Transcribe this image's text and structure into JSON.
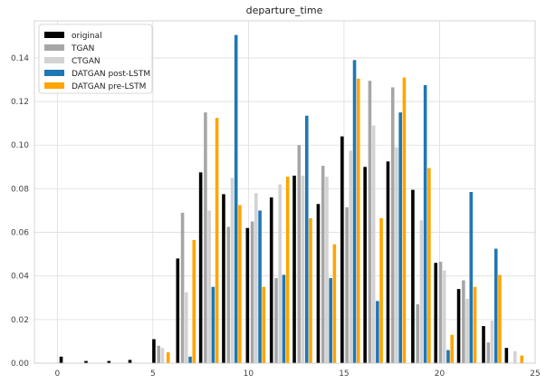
{
  "chart_data": {
    "type": "bar",
    "title": "departure_time",
    "xlabel": "",
    "ylabel": "",
    "xlim": [
      -1.2,
      25
    ],
    "ylim": [
      0,
      0.157
    ],
    "xticks": [
      0,
      5,
      10,
      15,
      20,
      25
    ],
    "xtick_labels": [
      "0",
      "5",
      "10",
      "15",
      "20",
      "25"
    ],
    "yticks": [
      0.0,
      0.02,
      0.04,
      0.06,
      0.08,
      0.1,
      0.12,
      0.14
    ],
    "ytick_labels": [
      "0.00",
      "0.02",
      "0.04",
      "0.06",
      "0.08",
      "0.10",
      "0.12",
      "0.14"
    ],
    "grid": true,
    "legend_position": "top-left",
    "series": [
      {
        "name": "original",
        "color": "#000000",
        "x": [
          0.2,
          1.5,
          2.7,
          3.8,
          5.05,
          6.3,
          7.5,
          8.7,
          9.95,
          11.2,
          12.4,
          13.65,
          14.9,
          16.1,
          17.3,
          18.6,
          19.8,
          21.0,
          22.3,
          23.5
        ],
        "values": [
          0.003,
          0.001,
          0.001,
          0.0015,
          0.011,
          0.048,
          0.0875,
          0.0775,
          0.062,
          0.076,
          0.086,
          0.073,
          0.104,
          0.09,
          0.0925,
          0.0795,
          0.046,
          0.034,
          0.017,
          0.007
        ]
      },
      {
        "name": "TGAN",
        "color": "#a6a6a6",
        "x": [
          5.3,
          6.55,
          7.75,
          8.95,
          10.2,
          11.45,
          12.65,
          13.9,
          15.15,
          16.35,
          17.55,
          18.85,
          20.05,
          21.25,
          22.55
        ],
        "values": [
          0.008,
          0.069,
          0.115,
          0.0625,
          0.065,
          0.039,
          0.1,
          0.0905,
          0.0715,
          0.1295,
          0.1265,
          0.027,
          0.0465,
          0.038,
          0.0095
        ]
      },
      {
        "name": "CTGAN",
        "color": "#d3d3d3",
        "x": [
          5.5,
          6.75,
          7.95,
          9.15,
          10.4,
          11.65,
          12.85,
          14.1,
          15.35,
          16.55,
          17.75,
          19.05,
          20.25,
          21.45,
          22.75,
          23.95
        ],
        "values": [
          0.007,
          0.0325,
          0.07,
          0.085,
          0.078,
          0.082,
          0.086,
          0.0855,
          0.0975,
          0.109,
          0.099,
          0.0655,
          0.0425,
          0.0295,
          0.0195,
          0.0055
        ]
      },
      {
        "name": "DATGAN post-LSTM",
        "color": "#1f77b4",
        "x": [
          6.95,
          8.15,
          9.35,
          10.6,
          11.85,
          13.05,
          14.3,
          15.55,
          16.75,
          17.95,
          19.25,
          20.45,
          21.65,
          22.95
        ],
        "values": [
          0.003,
          0.035,
          0.1505,
          0.07,
          0.0405,
          0.1135,
          0.039,
          0.139,
          0.0285,
          0.115,
          0.1275,
          0.006,
          0.0785,
          0.0525
        ]
      },
      {
        "name": "DATGAN pre-LSTM",
        "color": "#ffa500",
        "x": [
          5.8,
          7.15,
          8.35,
          9.55,
          10.8,
          12.05,
          13.25,
          14.5,
          15.75,
          16.95,
          18.15,
          19.45,
          20.65,
          21.85,
          23.15,
          24.3
        ],
        "values": [
          0.005,
          0.0565,
          0.1125,
          0.0725,
          0.035,
          0.0855,
          0.0665,
          0.0545,
          0.1305,
          0.0665,
          0.131,
          0.0895,
          0.013,
          0.035,
          0.0405,
          0.0035
        ]
      }
    ]
  }
}
